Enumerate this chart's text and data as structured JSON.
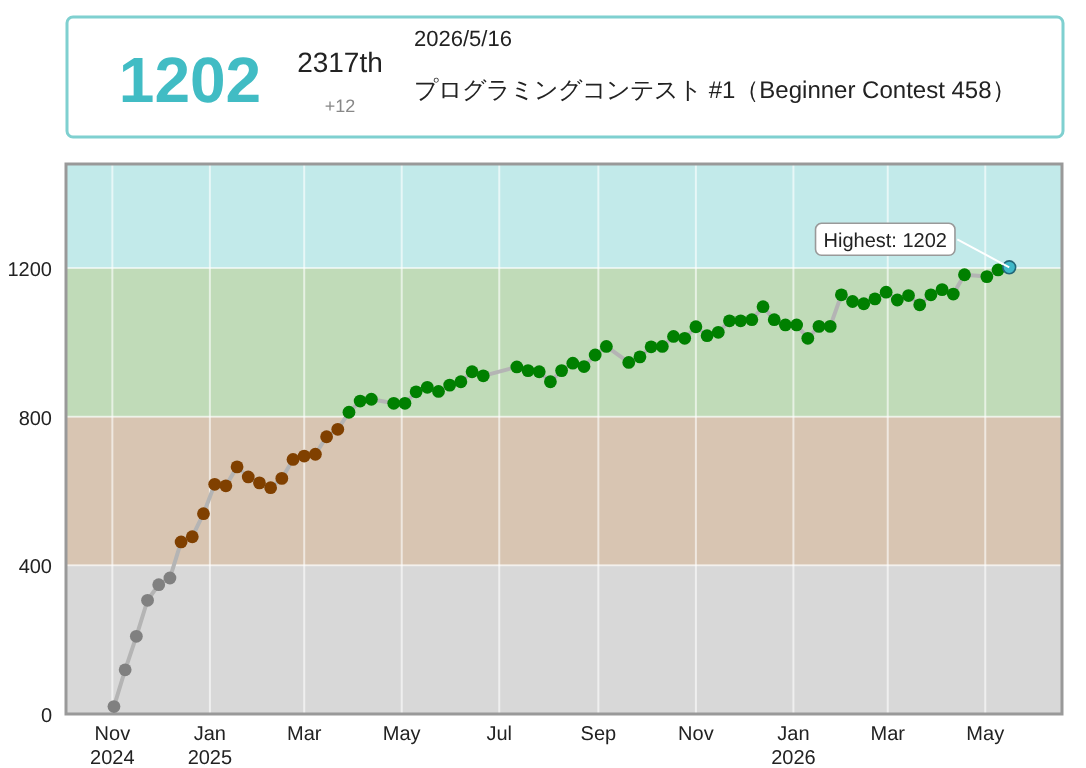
{
  "chart_data": {
    "type": "line",
    "annotations": [
      "1202",
      "2317th",
      "+12",
      "2026/5/16",
      "プログラミングコンテスト #1（Beginner Contest 458）",
      {
        "text": "Highest: 1202",
        "x": "2026-05-16",
        "y": 1202
      }
    ],
    "x": [
      "2024-11-02",
      "2024-11-09",
      "2024-11-16",
      "2024-11-23",
      "2024-11-30",
      "2024-12-07",
      "2024-12-14",
      "2024-12-21",
      "2024-12-28",
      "2025-01-04",
      "2025-01-11",
      "2025-01-18",
      "2025-01-25",
      "2025-02-01",
      "2025-02-08",
      "2025-02-15",
      "2025-02-22",
      "2025-03-01",
      "2025-03-08",
      "2025-03-15",
      "2025-03-22",
      "2025-03-29",
      "2025-04-05",
      "2025-04-12",
      "2025-04-26",
      "2025-05-03",
      "2025-05-10",
      "2025-05-17",
      "2025-05-24",
      "2025-05-31",
      "2025-06-07",
      "2025-06-14",
      "2025-06-21",
      "2025-07-12",
      "2025-07-19",
      "2025-07-26",
      "2025-08-02",
      "2025-08-09",
      "2025-08-16",
      "2025-08-23",
      "2025-08-30",
      "2025-09-06",
      "2025-09-20",
      "2025-09-27",
      "2025-10-04",
      "2025-10-11",
      "2025-10-18",
      "2025-10-25",
      "2025-11-01",
      "2025-11-08",
      "2025-11-15",
      "2025-11-22",
      "2025-11-29",
      "2025-12-06",
      "2025-12-13",
      "2025-12-20",
      "2025-12-27",
      "2026-01-03",
      "2026-01-10",
      "2026-01-17",
      "2026-01-24",
      "2026-01-31",
      "2026-02-07",
      "2026-02-14",
      "2026-02-21",
      "2026-02-28",
      "2026-03-07",
      "2026-03-14",
      "2026-03-21",
      "2026-03-28",
      "2026-04-04",
      "2026-04-11",
      "2026-04-18",
      "2026-05-02",
      "2026-05-09",
      "2026-05-16"
    ],
    "series": [
      {
        "color": "#b4b4b4",
        "values": [
          20,
          119,
          209,
          306,
          348,
          366,
          463,
          477,
          539,
          618,
          614,
          665,
          638,
          622,
          609,
          634,
          685,
          694,
          699,
          746,
          766,
          812,
          842,
          847,
          836,
          836,
          867,
          879,
          868,
          885,
          894,
          921,
          910,
          934,
          924,
          921,
          894,
          924,
          944,
          935,
          966,
          989,
          946,
          961,
          988,
          989,
          1016,
          1011,
          1042,
          1018,
          1027,
          1058,
          1058,
          1061,
          1096,
          1061,
          1047,
          1047,
          1011,
          1043,
          1043,
          1128,
          1110,
          1104,
          1117,
          1135,
          1114,
          1126,
          1101,
          1128,
          1142,
          1130,
          1182,
          1177,
          1195,
          1202
        ],
        "colors": [
          "#808080",
          "#808080",
          "#808080",
          "#808080",
          "#808080",
          "#808080",
          "#804000",
          "#804000",
          "#804000",
          "#804000",
          "#804000",
          "#804000",
          "#804000",
          "#804000",
          "#804000",
          "#804000",
          "#804000",
          "#804000",
          "#804000",
          "#804000",
          "#804000",
          "#008000",
          "#008000",
          "#008000",
          "#008000",
          "#008000",
          "#008000",
          "#008000",
          "#008000",
          "#008000",
          "#008000",
          "#008000",
          "#008000",
          "#008000",
          "#008000",
          "#008000",
          "#008000",
          "#008000",
          "#008000",
          "#008000",
          "#008000",
          "#008000",
          "#008000",
          "#008000",
          "#008000",
          "#008000",
          "#008000",
          "#008000",
          "#008000",
          "#008000",
          "#008000",
          "#008000",
          "#008000",
          "#008000",
          "#008000",
          "#008000",
          "#008000",
          "#008000",
          "#008000",
          "#008000",
          "#008000",
          "#008000",
          "#008000",
          "#008000",
          "#008000",
          "#008000",
          "#008000",
          "#008000",
          "#008000",
          "#008000",
          "#008000",
          "#008000",
          "#008000",
          "#008000",
          "#008000",
          "#3fb8c8"
        ]
      }
    ],
    "bands": [
      {
        "axis": "y",
        "from": 0,
        "to": 400,
        "color": "#d8d8d8"
      },
      {
        "axis": "y",
        "from": 400,
        "to": 800,
        "color": "#d8c5b2"
      },
      {
        "axis": "y",
        "from": 800,
        "to": 1200,
        "color": "#c0dbb8"
      },
      {
        "axis": "y",
        "from": 1200,
        "to": 1480,
        "color": "#c2eaea"
      }
    ],
    "xlim": [
      "2024-10-03",
      "2026-06-18"
    ],
    "xticks": [
      {
        "value": "2024-11-01",
        "label": "Nov 2024"
      },
      {
        "value": "2025-01-01",
        "label": "Jan 2025"
      },
      {
        "value": "2025-03-01",
        "label": "Mar"
      },
      {
        "value": "2025-05-01",
        "label": "May"
      },
      {
        "value": "2025-07-01",
        "label": "Jul"
      },
      {
        "value": "2025-09-01",
        "label": "Sep"
      },
      {
        "value": "2025-11-01",
        "label": "Nov"
      },
      {
        "value": "2026-01-01",
        "label": "Jan 2026"
      },
      {
        "value": "2026-03-01",
        "label": "Mar"
      },
      {
        "value": "2026-05-01",
        "label": "May"
      }
    ],
    "ylim": [
      0,
      1480
    ],
    "yticks": [
      0,
      400,
      800,
      1200
    ],
    "grid": true,
    "marker": "circle",
    "line_style": "solid"
  }
}
